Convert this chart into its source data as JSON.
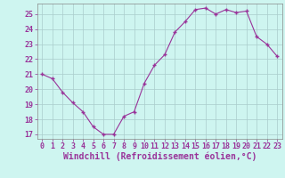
{
  "x": [
    0,
    1,
    2,
    3,
    4,
    5,
    6,
    7,
    8,
    9,
    10,
    11,
    12,
    13,
    14,
    15,
    16,
    17,
    18,
    19,
    20,
    21,
    22,
    23
  ],
  "y": [
    21.0,
    20.7,
    19.8,
    19.1,
    18.5,
    17.5,
    17.0,
    17.0,
    18.2,
    18.5,
    20.4,
    21.6,
    22.3,
    23.8,
    24.5,
    25.3,
    25.4,
    25.0,
    25.3,
    25.1,
    25.2,
    23.5,
    23.0,
    22.2
  ],
  "line_color": "#993399",
  "marker_color": "#993399",
  "bg_color": "#cef5f0",
  "grid_color": "#aacccc",
  "axis_color": "#993399",
  "xlabel": "Windchill (Refroidissement éolien,°C)",
  "ylim": [
    16.7,
    25.7
  ],
  "xlim": [
    -0.5,
    23.5
  ],
  "yticks": [
    17,
    18,
    19,
    20,
    21,
    22,
    23,
    24,
    25
  ],
  "xticks": [
    0,
    1,
    2,
    3,
    4,
    5,
    6,
    7,
    8,
    9,
    10,
    11,
    12,
    13,
    14,
    15,
    16,
    17,
    18,
    19,
    20,
    21,
    22,
    23
  ],
  "tick_fontsize": 6.0,
  "xlabel_fontsize": 7.0
}
